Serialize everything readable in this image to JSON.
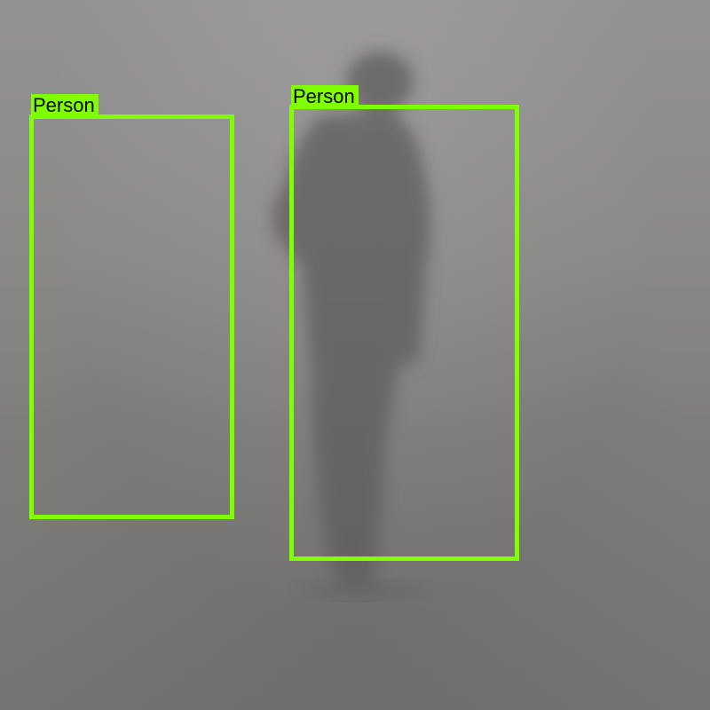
{
  "scene": {
    "description_colors": {
      "fog_top": "#939293",
      "fog_bottom": "#767473",
      "figure": "#615f5d"
    }
  },
  "detections": [
    {
      "label": "Person",
      "color": "#7fff00"
    },
    {
      "label": "Person",
      "color": "#7fff00"
    }
  ]
}
